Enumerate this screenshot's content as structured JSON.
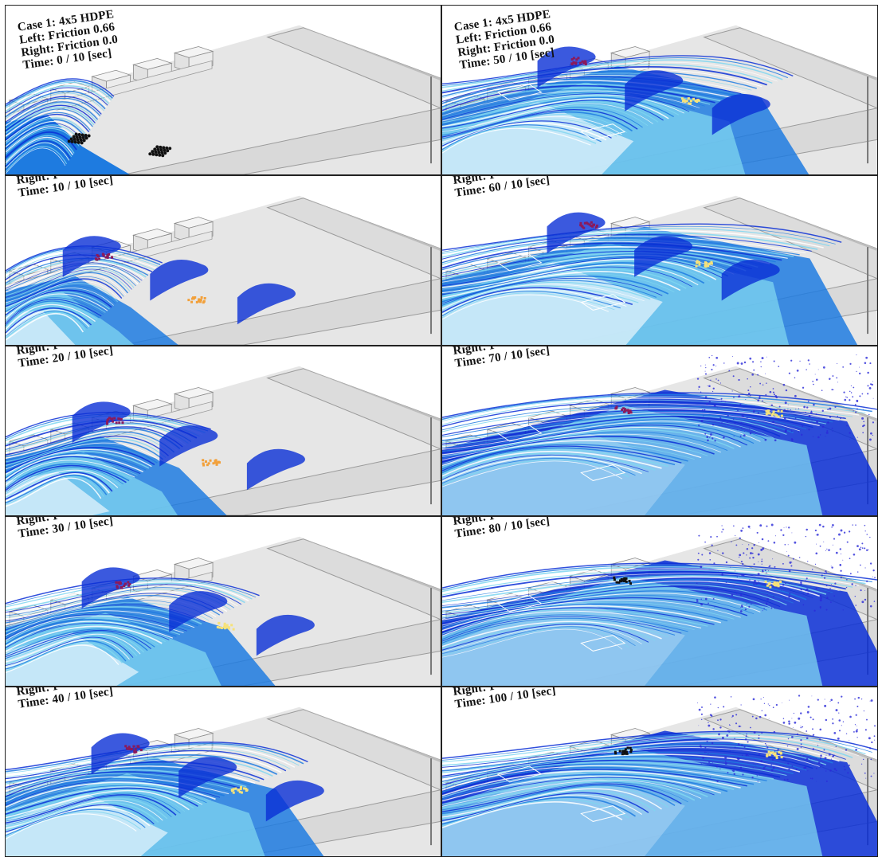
{
  "figure": {
    "header": {
      "case": "Case 1: 4x5 HDPE",
      "left": "Left: Friction 0.66",
      "right": "Right: Friction 0.0",
      "right_cut": "Right: F"
    },
    "panels": [
      {
        "time": "Time: 0 / 10 [sec]",
        "stage": 0,
        "full_header": true
      },
      {
        "time": "Time: 50 / 10 [sec]",
        "stage": 5,
        "full_header": true
      },
      {
        "time": "Time: 10 / 10 [sec]",
        "stage": 1,
        "full_header": false
      },
      {
        "time": "Time: 60 / 10 [sec]",
        "stage": 6,
        "full_header": false
      },
      {
        "time": "Time: 20 / 10 [sec]",
        "stage": 2,
        "full_header": false
      },
      {
        "time": "Time: 70 / 10 [sec]",
        "stage": 7,
        "full_header": false
      },
      {
        "time": "Time: 30 / 10 [sec]",
        "stage": 3,
        "full_header": false
      },
      {
        "time": "Time: 80 / 10 [sec]",
        "stage": 8,
        "full_header": false
      },
      {
        "time": "Time: 40 / 10 [sec]",
        "stage": 4,
        "full_header": false
      },
      {
        "time": "Time: 100 / 10 [sec]",
        "stage": 10,
        "full_header": false
      }
    ],
    "colors": {
      "deep_blue": "#0a2fd6",
      "mid_blue": "#1e7be0",
      "cyan": "#7fd6f0",
      "foam": "#ffffff",
      "basin_floor": "#e6e6e6",
      "wall": "#d4d4d4",
      "debris_left": "#8a1a5c",
      "debris_right": "#f2a03a",
      "debris_right_late": "#f6e27a",
      "debris_initial": "#111111"
    }
  }
}
